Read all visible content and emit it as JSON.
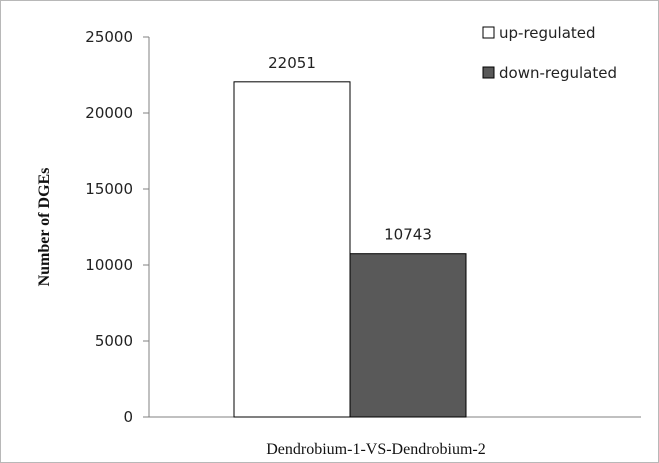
{
  "chart_data": {
    "type": "bar",
    "categories": [
      "Dendrobium-1-VS-Dendrobium-2"
    ],
    "series": [
      {
        "name": "up-regulated",
        "values": [
          22051
        ],
        "color": "#ffffff",
        "data_labels": [
          "22051"
        ]
      },
      {
        "name": "down-regulated",
        "values": [
          10743
        ],
        "color": "#595959",
        "data_labels": [
          "10743"
        ]
      }
    ],
    "title": "",
    "xlabel": "Dendrobium-1-VS-Dendrobium-2",
    "ylabel": "Number of DGEs",
    "ylim": [
      0,
      25000
    ],
    "yticks": [
      "0",
      "5000",
      "10000",
      "15000",
      "20000",
      "25000"
    ],
    "grid": false,
    "legend_position": "top-right"
  }
}
